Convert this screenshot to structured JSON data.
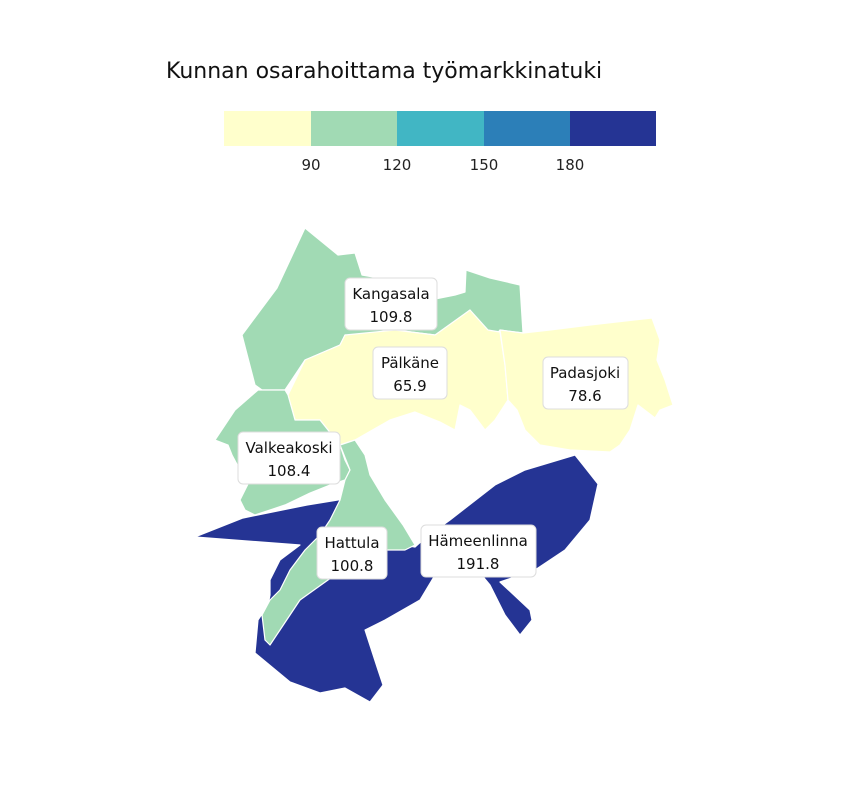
{
  "title": "Kunnan osarahoittama työmarkkinatuki",
  "legend": {
    "colors": [
      "#ffffcc",
      "#a1dab4",
      "#41b6c4",
      "#2c7fb8",
      "#253494"
    ],
    "breaks": [
      "90",
      "120",
      "150",
      "180"
    ]
  },
  "municipalities": [
    {
      "id": "kangasala",
      "name": "Kangasala",
      "value": "109.8",
      "color": "#a1dab4"
    },
    {
      "id": "palkane",
      "name": "Pälkäne",
      "value": "65.9",
      "color": "#ffffcc"
    },
    {
      "id": "padasjoki",
      "name": "Padasjoki",
      "value": "78.6",
      "color": "#ffffcc"
    },
    {
      "id": "valkeakoski",
      "name": "Valkeakoski",
      "value": "108.4",
      "color": "#a1dab4"
    },
    {
      "id": "hattula",
      "name": "Hattula",
      "value": "100.8",
      "color": "#a1dab4"
    },
    {
      "id": "hameenlinna",
      "name": "Hämeenlinna",
      "value": "191.8",
      "color": "#253494"
    }
  ]
}
